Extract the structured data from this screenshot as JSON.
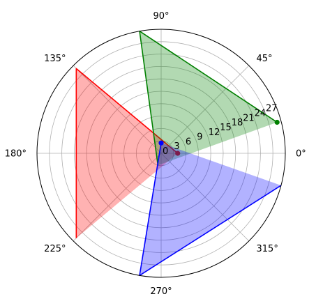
{
  "chart_data": {
    "type": "polar-area",
    "title": "",
    "angular_ticks": [
      "0°",
      "45°",
      "90°",
      "135°",
      "180°",
      "225°",
      "270°",
      "315°"
    ],
    "radial_ticks": [
      "0",
      "3",
      "6",
      "9",
      "12",
      "15",
      "18",
      "21",
      "24",
      "27"
    ],
    "rlim": [
      0,
      30
    ],
    "rlabel_angle_deg": 22.5,
    "grid": true,
    "series": [
      {
        "color": "#ff0000",
        "points": [
          {
            "theta_deg": 0,
            "r": 4
          },
          {
            "theta_deg": 135,
            "r": 29
          },
          {
            "theta_deg": 225,
            "r": 29
          }
        ]
      },
      {
        "color": "#008000",
        "points": [
          {
            "theta_deg": 15,
            "r": 29
          },
          {
            "theta_deg": 100,
            "r": 30
          },
          {
            "theta_deg": 255,
            "r": 3
          }
        ]
      },
      {
        "color": "#0000ff",
        "points": [
          {
            "theta_deg": 90,
            "r": 2.5
          },
          {
            "theta_deg": 260,
            "r": 30
          },
          {
            "theta_deg": 345,
            "r": 30
          }
        ]
      }
    ]
  }
}
